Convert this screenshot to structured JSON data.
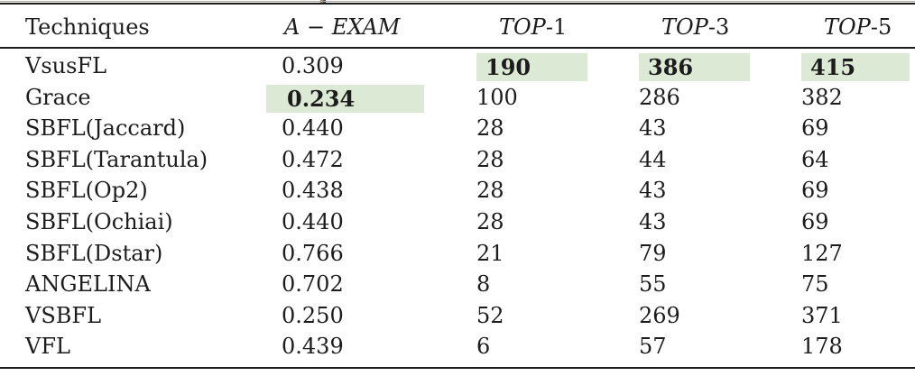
{
  "colors": {
    "highlight": "#dce9d5",
    "rule": "#1c1c1c",
    "text": "#1c1c1c",
    "background": "#ffffff"
  },
  "table": {
    "header": {
      "techniques": "Techniques",
      "a_exam": "A − EXAM",
      "top1": {
        "italic": "TOP",
        "suffix": "-1"
      },
      "top3": {
        "italic": "TOP",
        "suffix": "-3"
      },
      "top5": {
        "italic": "TOP",
        "suffix": "-5"
      }
    },
    "rows": [
      {
        "technique": "VsusFL",
        "a_exam": "0.309",
        "top1": "190",
        "top3": "386",
        "top5": "415",
        "bold": [
          "top1",
          "top3",
          "top5"
        ],
        "highlighted": [
          "top1",
          "top3",
          "top5"
        ]
      },
      {
        "technique": "Grace",
        "a_exam": "0.234",
        "top1": "100",
        "top3": "286",
        "top5": "382",
        "bold": [
          "a_exam"
        ],
        "highlighted": [
          "a_exam"
        ]
      },
      {
        "technique": "SBFL(Jaccard)",
        "a_exam": "0.440",
        "top1": "28",
        "top3": "43",
        "top5": "69",
        "bold": [],
        "highlighted": []
      },
      {
        "technique": "SBFL(Tarantula)",
        "a_exam": "0.472",
        "top1": "28",
        "top3": "44",
        "top5": "64",
        "bold": [],
        "highlighted": []
      },
      {
        "technique": "SBFL(Op2)",
        "a_exam": "0.438",
        "top1": "28",
        "top3": "43",
        "top5": "69",
        "bold": [],
        "highlighted": []
      },
      {
        "technique": "SBFL(Ochiai)",
        "a_exam": "0.440",
        "top1": "28",
        "top3": "43",
        "top5": "69",
        "bold": [],
        "highlighted": []
      },
      {
        "technique": "SBFL(Dstar)",
        "a_exam": "0.766",
        "top1": "21",
        "top3": "79",
        "top5": "127",
        "bold": [],
        "highlighted": []
      },
      {
        "technique": "ANGELINA",
        "a_exam": "0.702",
        "top1": "8",
        "top3": "55",
        "top5": "75",
        "bold": [],
        "highlighted": []
      },
      {
        "technique": "VSBFL",
        "a_exam": "0.250",
        "top1": "52",
        "top3": "269",
        "top5": "371",
        "bold": [],
        "highlighted": []
      },
      {
        "technique": "VFL",
        "a_exam": "0.439",
        "top1": "6",
        "top3": "57",
        "top5": "178",
        "bold": [],
        "highlighted": []
      }
    ]
  }
}
